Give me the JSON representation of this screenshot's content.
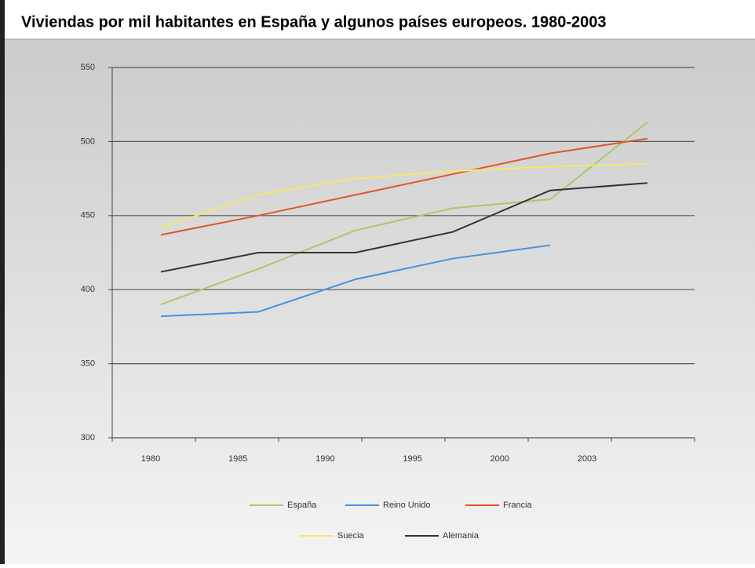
{
  "chart_data": {
    "type": "line",
    "title": "Viviendas por mil habitantes en España y algunos países europeos. 1980-2003",
    "categories": [
      "1980",
      "1985",
      "1990",
      "1995",
      "2000",
      "2003"
    ],
    "series": [
      {
        "name": "España",
        "color": "#a8c86c",
        "values": [
          390,
          414,
          440,
          455,
          461,
          513
        ]
      },
      {
        "name": "Reino Unido",
        "color": "#4a8fde",
        "values": [
          382,
          385,
          407,
          421,
          430,
          null
        ]
      },
      {
        "name": "Francia",
        "color": "#e0552b",
        "values": [
          437,
          450,
          464,
          478,
          492,
          502
        ]
      },
      {
        "name": "Suecia",
        "color": "#f3e86a",
        "values": [
          442,
          464,
          475,
          480,
          483,
          485
        ]
      },
      {
        "name": "Alemania",
        "color": "#333333",
        "values": [
          412,
          425,
          425,
          439,
          467,
          472
        ]
      }
    ],
    "ylim": [
      300,
      550
    ],
    "yticks": [
      300,
      350,
      400,
      450,
      500,
      550
    ],
    "grid": true
  }
}
